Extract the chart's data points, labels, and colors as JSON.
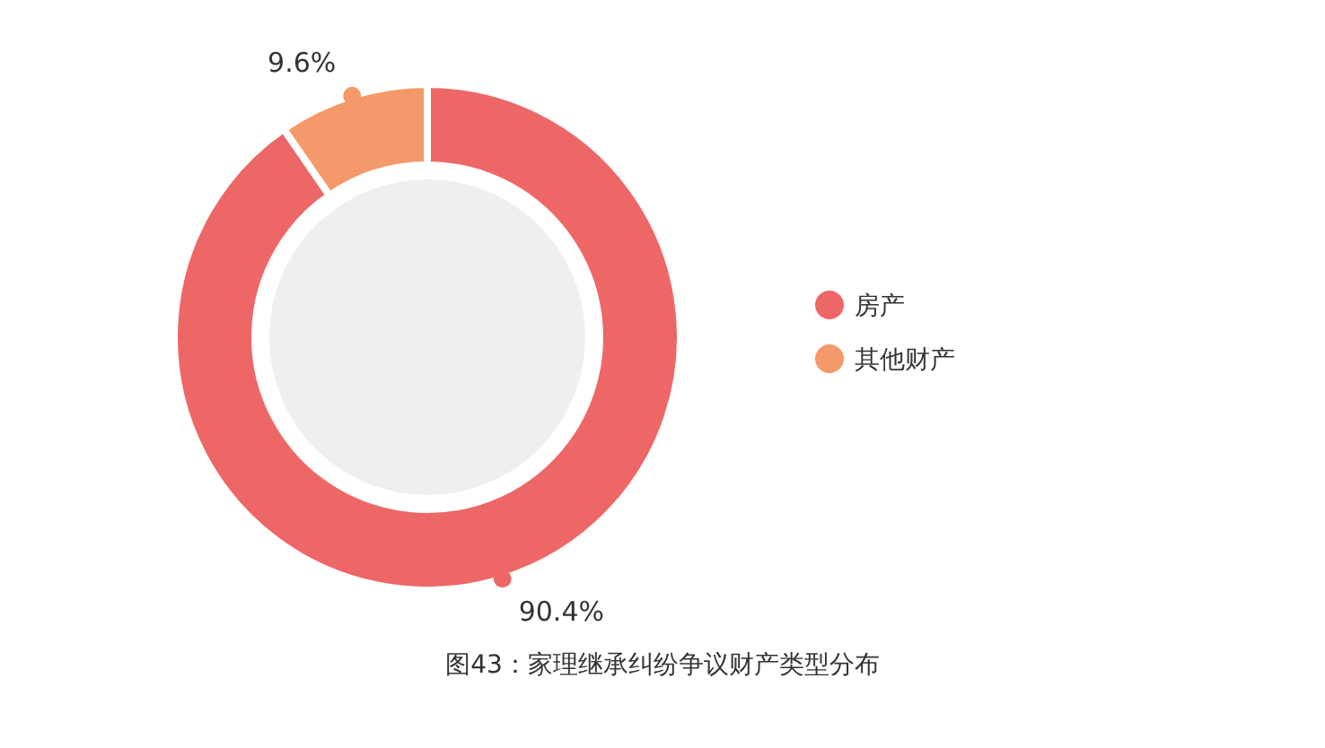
{
  "chart_data": {
    "type": "donut",
    "title": "图43：家理继承纠纷争议财产类型分布",
    "categories": [
      "房产",
      "其他财产"
    ],
    "values": [
      90.4,
      9.6
    ],
    "colors": [
      "#ee6767",
      "#f4996a"
    ],
    "value_labels": [
      "90.4%",
      "9.6%"
    ],
    "legend": "right"
  }
}
